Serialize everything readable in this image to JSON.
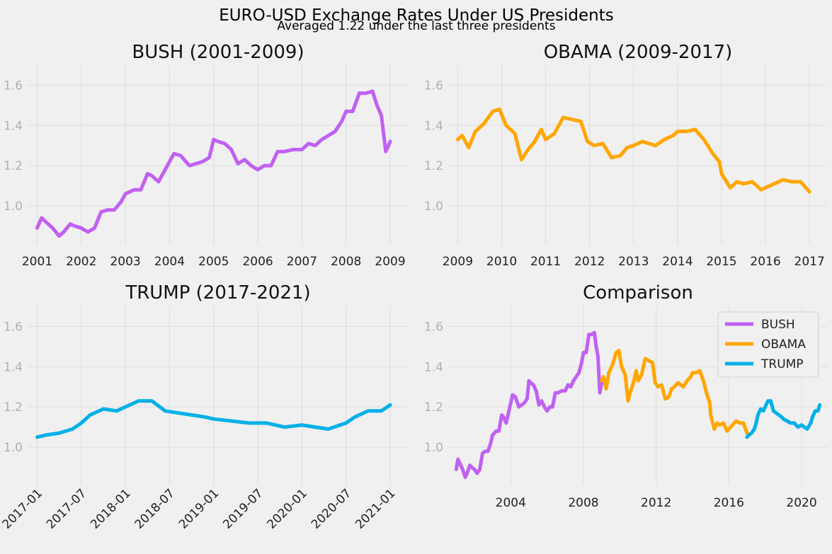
{
  "figure": {
    "title": "EURO-USD Exchange Rates Under US Presidents",
    "subtitle": "Averaged 1.22 under the last three presidents",
    "background": "#f0f0f0"
  },
  "colors": {
    "BUSH": "#c061f2",
    "OBAMA": "#ffa600",
    "TRUMP": "#00b0e8"
  },
  "chart_data": [
    {
      "type": "line",
      "title": "BUSH (2001-2009)",
      "xlabel": "",
      "ylabel": "",
      "xlim": [
        2000.8,
        2009.4
      ],
      "ylim": [
        0.81,
        1.7
      ],
      "yticks": [
        1.0,
        1.2,
        1.4,
        1.6
      ],
      "xticks": [
        2001,
        2002,
        2003,
        2004,
        2005,
        2006,
        2007,
        2008,
        2009
      ],
      "xtick_labels": [
        "2001",
        "2002",
        "2003",
        "2004",
        "2005",
        "2006",
        "2007",
        "2008",
        "2009"
      ],
      "grid": true,
      "series": [
        {
          "color": "#c061f2",
          "x": [
            2001.0,
            2001.1,
            2001.2,
            2001.35,
            2001.5,
            2001.6,
            2001.75,
            2001.85,
            2002.0,
            2002.15,
            2002.3,
            2002.45,
            2002.6,
            2002.75,
            2002.9,
            2003.0,
            2003.2,
            2003.35,
            2003.5,
            2003.6,
            2003.75,
            2003.85,
            2004.0,
            2004.1,
            2004.25,
            2004.45,
            2004.6,
            2004.75,
            2004.9,
            2005.0,
            2005.1,
            2005.25,
            2005.4,
            2005.55,
            2005.7,
            2005.85,
            2006.0,
            2006.15,
            2006.3,
            2006.45,
            2006.6,
            2006.8,
            2007.0,
            2007.15,
            2007.3,
            2007.45,
            2007.6,
            2007.75,
            2007.9,
            2008.0,
            2008.15,
            2008.3,
            2008.45,
            2008.6,
            2008.7,
            2008.8,
            2008.9,
            2009.0
          ],
          "y": [
            0.89,
            0.94,
            0.92,
            0.89,
            0.85,
            0.87,
            0.91,
            0.9,
            0.89,
            0.87,
            0.89,
            0.97,
            0.98,
            0.98,
            1.02,
            1.06,
            1.08,
            1.08,
            1.16,
            1.15,
            1.12,
            1.16,
            1.22,
            1.26,
            1.25,
            1.2,
            1.21,
            1.22,
            1.24,
            1.33,
            1.32,
            1.31,
            1.28,
            1.21,
            1.23,
            1.2,
            1.18,
            1.2,
            1.2,
            1.27,
            1.27,
            1.28,
            1.28,
            1.31,
            1.3,
            1.33,
            1.35,
            1.37,
            1.42,
            1.47,
            1.47,
            1.56,
            1.56,
            1.57,
            1.5,
            1.45,
            1.27,
            1.32
          ]
        }
      ]
    },
    {
      "type": "line",
      "title": "OBAMA (2009-2017)",
      "xlabel": "",
      "ylabel": "",
      "xlim": [
        2008.8,
        2017.4
      ],
      "ylim": [
        0.81,
        1.7
      ],
      "yticks": [
        1.0,
        1.2,
        1.4,
        1.6
      ],
      "xticks": [
        2009,
        2010,
        2011,
        2012,
        2013,
        2014,
        2015,
        2016,
        2017
      ],
      "xtick_labels": [
        "2009",
        "2010",
        "2011",
        "2012",
        "2013",
        "2014",
        "2015",
        "2016",
        "2017"
      ],
      "grid": true,
      "series": [
        {
          "color": "#ffa600",
          "x": [
            2009.0,
            2009.1,
            2009.25,
            2009.4,
            2009.6,
            2009.8,
            2009.95,
            2010.1,
            2010.3,
            2010.45,
            2010.6,
            2010.75,
            2010.9,
            2011.0,
            2011.2,
            2011.4,
            2011.6,
            2011.8,
            2011.95,
            2012.1,
            2012.3,
            2012.5,
            2012.7,
            2012.85,
            2013.0,
            2013.2,
            2013.35,
            2013.5,
            2013.7,
            2013.9,
            2014.0,
            2014.2,
            2014.4,
            2014.6,
            2014.8,
            2014.95,
            2015.0,
            2015.2,
            2015.35,
            2015.5,
            2015.7,
            2015.9,
            2016.0,
            2016.2,
            2016.4,
            2016.6,
            2016.8,
            2017.0
          ],
          "y": [
            1.33,
            1.35,
            1.29,
            1.37,
            1.41,
            1.47,
            1.48,
            1.4,
            1.36,
            1.23,
            1.28,
            1.32,
            1.38,
            1.33,
            1.36,
            1.44,
            1.43,
            1.42,
            1.32,
            1.3,
            1.31,
            1.24,
            1.25,
            1.29,
            1.3,
            1.32,
            1.31,
            1.3,
            1.33,
            1.35,
            1.37,
            1.37,
            1.38,
            1.33,
            1.26,
            1.22,
            1.16,
            1.09,
            1.12,
            1.11,
            1.12,
            1.08,
            1.09,
            1.11,
            1.13,
            1.12,
            1.12,
            1.07
          ]
        }
      ]
    },
    {
      "type": "line",
      "title": "TRUMP (2017-2021)",
      "xlabel": "",
      "ylabel": "",
      "xlim": [
        2016.9,
        2021.2
      ],
      "ylim": [
        0.81,
        1.7
      ],
      "yticks": [
        1.0,
        1.2,
        1.4,
        1.6
      ],
      "xticks": [
        2017.0,
        2017.5,
        2018.0,
        2018.5,
        2019.0,
        2019.5,
        2020.0,
        2020.5,
        2021.0
      ],
      "xtick_labels": [
        "2017-01",
        "2017-07",
        "2018-01",
        "2018-07",
        "2019-01",
        "2019-07",
        "2020-01",
        "2020-07",
        "2021-01"
      ],
      "grid": true,
      "series": [
        {
          "color": "#00b0e8",
          "x": [
            2017.0,
            2017.1,
            2017.25,
            2017.4,
            2017.5,
            2017.6,
            2017.75,
            2017.9,
            2018.0,
            2018.15,
            2018.3,
            2018.45,
            2018.6,
            2018.75,
            2018.9,
            2019.0,
            2019.2,
            2019.4,
            2019.6,
            2019.8,
            2020.0,
            2020.15,
            2020.3,
            2020.5,
            2020.6,
            2020.75,
            2020.9,
            2021.0
          ],
          "y": [
            1.05,
            1.06,
            1.07,
            1.09,
            1.12,
            1.16,
            1.19,
            1.18,
            1.2,
            1.23,
            1.23,
            1.18,
            1.17,
            1.16,
            1.15,
            1.14,
            1.13,
            1.12,
            1.12,
            1.1,
            1.11,
            1.1,
            1.09,
            1.12,
            1.15,
            1.18,
            1.18,
            1.21
          ]
        }
      ]
    },
    {
      "type": "line",
      "title": "Comparison",
      "xlabel": "",
      "ylabel": "",
      "xlim": [
        2000.6,
        2021.4
      ],
      "ylim": [
        0.81,
        1.7
      ],
      "yticks": [
        1.0,
        1.2,
        1.4,
        1.6
      ],
      "xticks": [
        2004,
        2008,
        2012,
        2016,
        2020
      ],
      "xtick_labels": [
        "2004",
        "2008",
        "2012",
        "2016",
        "2020"
      ],
      "grid": true,
      "legend": {
        "placement": "top-right",
        "entries": [
          "BUSH",
          "OBAMA",
          "TRUMP"
        ]
      },
      "series": [
        {
          "name": "BUSH",
          "color": "#c061f2",
          "ref": 0
        },
        {
          "name": "OBAMA",
          "color": "#ffa600",
          "ref": 1
        },
        {
          "name": "TRUMP",
          "color": "#00b0e8",
          "ref": 2
        }
      ]
    }
  ]
}
